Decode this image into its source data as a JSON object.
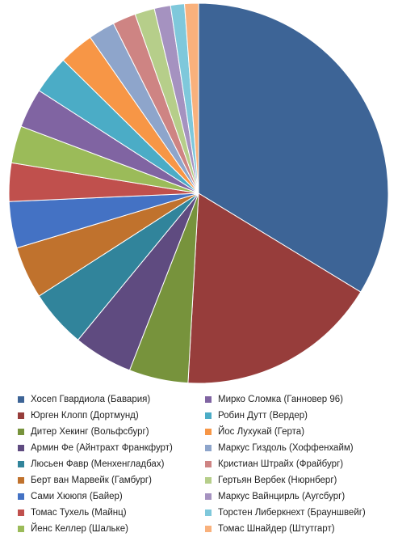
{
  "chart_data": {
    "type": "pie",
    "title": "",
    "start_angle_deg": 0,
    "direction": "clockwise",
    "legend_position": "bottom",
    "slices": [
      {
        "label": "Хосеп Гвардиола (Бавария)",
        "value": 34.1,
        "color": "#3D6496"
      },
      {
        "label": "Юрген Клопп (Дортмунд)",
        "value": 17.4,
        "color": "#973D3B"
      },
      {
        "label": "Дитер Хекинг (Вольфсбург)",
        "value": 5.1,
        "color": "#77933C"
      },
      {
        "label": "Армин Фе (Айнтрахт Франкфурт)",
        "value": 5.1,
        "color": "#5F4B80"
      },
      {
        "label": "Люсьен Фавр (Менхенгладбах)",
        "value": 5.0,
        "color": "#31849B"
      },
      {
        "label": "Берт ван Марвейк (Гамбург)",
        "value": 4.5,
        "color": "#C0722D"
      },
      {
        "label": "Сами Хююпя (Байер)",
        "value": 4.0,
        "color": "#4472C4"
      },
      {
        "label": "Томас Тухель (Майнц)",
        "value": 3.3,
        "color": "#C0504D"
      },
      {
        "label": "Йенс Келлер (Шальке)",
        "value": 3.2,
        "color": "#9BBB59"
      },
      {
        "label": "Мирко Сломка (Ганновер 96)",
        "value": 3.4,
        "color": "#8064A2"
      },
      {
        "label": "Робин Дутт (Вердер)",
        "value": 3.3,
        "color": "#4BACC6"
      },
      {
        "label": "Йос Лухукай (Герта)",
        "value": 3.0,
        "color": "#F79646"
      },
      {
        "label": "Маркус Гиздоль (Хоффенхайм)",
        "value": 2.3,
        "color": "#8EA5CB"
      },
      {
        "label": "Кристиан Штрайх (Фрайбург)",
        "value": 2.0,
        "color": "#CE8483"
      },
      {
        "label": "Гертьян Вербек (Нюрнберг)",
        "value": 1.7,
        "color": "#B6CE8A"
      },
      {
        "label": "Маркус Вайнцирль (Аугсбург)",
        "value": 1.4,
        "color": "#A592C0"
      },
      {
        "label": "Торстен Либеркнехт (Брауншвейг)",
        "value": 1.2,
        "color": "#7FC8DB"
      },
      {
        "label": "Томас Шнайдер (Штутгарт)",
        "value": 1.2,
        "color": "#F9B17C"
      }
    ]
  }
}
